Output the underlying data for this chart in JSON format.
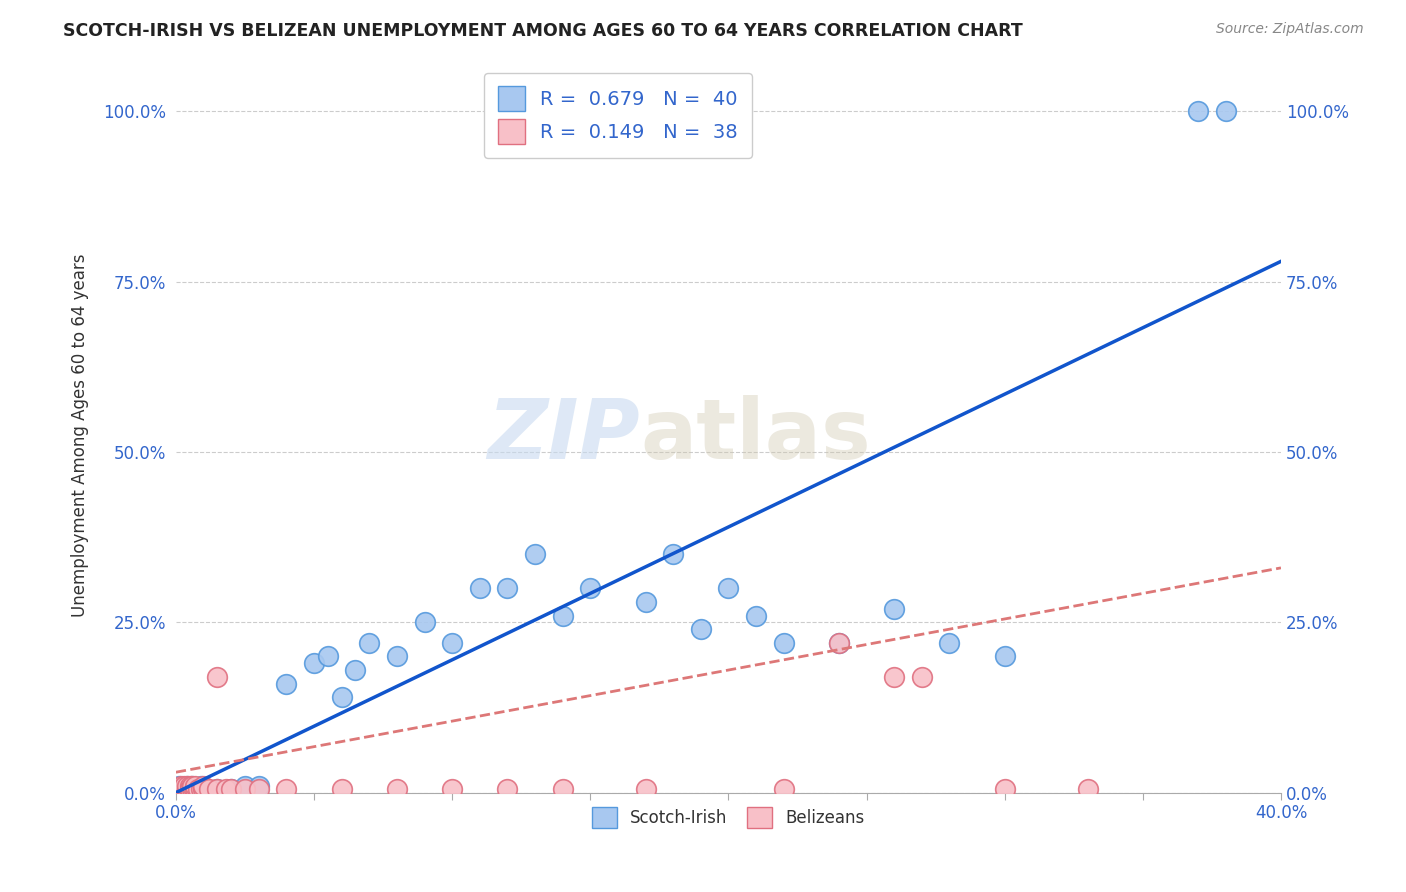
{
  "title": "SCOTCH-IRISH VS BELIZEAN UNEMPLOYMENT AMONG AGES 60 TO 64 YEARS CORRELATION CHART",
  "source": "Source: ZipAtlas.com",
  "ylabel": "Unemployment Among Ages 60 to 64 years",
  "xmin": 0.0,
  "xmax": 0.4,
  "ymin": 0.0,
  "ymax": 1.05,
  "scotch_irish_color": "#a8c8f0",
  "scotch_irish_edge": "#5599dd",
  "belizean_color": "#f8c0c8",
  "belizean_edge": "#e07080",
  "blue_line_color": "#1155cc",
  "pink_line_color": "#dd7777",
  "legend_R1": "0.679",
  "legend_N1": "40",
  "legend_R2": "0.149",
  "legend_N2": "38",
  "watermark_ZIP": "ZIP",
  "watermark_atlas": "atlas",
  "scotch_irish_x": [
    0.001,
    0.002,
    0.003,
    0.004,
    0.005,
    0.006,
    0.007,
    0.008,
    0.009,
    0.01,
    0.015,
    0.02,
    0.025,
    0.03,
    0.04,
    0.05,
    0.055,
    0.06,
    0.065,
    0.07,
    0.08,
    0.09,
    0.1,
    0.11,
    0.12,
    0.13,
    0.14,
    0.15,
    0.17,
    0.18,
    0.19,
    0.2,
    0.21,
    0.22,
    0.24,
    0.26,
    0.28,
    0.3,
    0.37,
    0.38
  ],
  "scotch_irish_y": [
    0.01,
    0.005,
    0.005,
    0.01,
    0.005,
    0.01,
    0.005,
    0.005,
    0.01,
    0.005,
    0.005,
    0.005,
    0.01,
    0.01,
    0.16,
    0.19,
    0.2,
    0.14,
    0.18,
    0.22,
    0.2,
    0.25,
    0.22,
    0.3,
    0.3,
    0.35,
    0.26,
    0.3,
    0.28,
    0.35,
    0.24,
    0.3,
    0.26,
    0.22,
    0.22,
    0.27,
    0.22,
    0.2,
    1.0,
    1.0
  ],
  "belizean_x": [
    0.001,
    0.002,
    0.002,
    0.003,
    0.003,
    0.004,
    0.004,
    0.005,
    0.005,
    0.005,
    0.006,
    0.006,
    0.007,
    0.007,
    0.008,
    0.009,
    0.01,
    0.01,
    0.012,
    0.015,
    0.015,
    0.018,
    0.02,
    0.025,
    0.03,
    0.04,
    0.06,
    0.08,
    0.1,
    0.12,
    0.14,
    0.17,
    0.22,
    0.24,
    0.26,
    0.27,
    0.3,
    0.33
  ],
  "belizean_y": [
    0.005,
    0.005,
    0.01,
    0.005,
    0.01,
    0.005,
    0.01,
    0.005,
    0.01,
    0.005,
    0.005,
    0.01,
    0.005,
    0.01,
    0.005,
    0.005,
    0.005,
    0.01,
    0.005,
    0.17,
    0.005,
    0.005,
    0.005,
    0.005,
    0.005,
    0.005,
    0.005,
    0.005,
    0.005,
    0.005,
    0.005,
    0.005,
    0.005,
    0.22,
    0.17,
    0.17,
    0.005,
    0.005
  ],
  "blue_line_x0": 0.0,
  "blue_line_y0": 0.0,
  "blue_line_x1": 0.4,
  "blue_line_y1": 0.78,
  "pink_line_x0": 0.0,
  "pink_line_y0": 0.03,
  "pink_line_x1": 0.4,
  "pink_line_y1": 0.33
}
